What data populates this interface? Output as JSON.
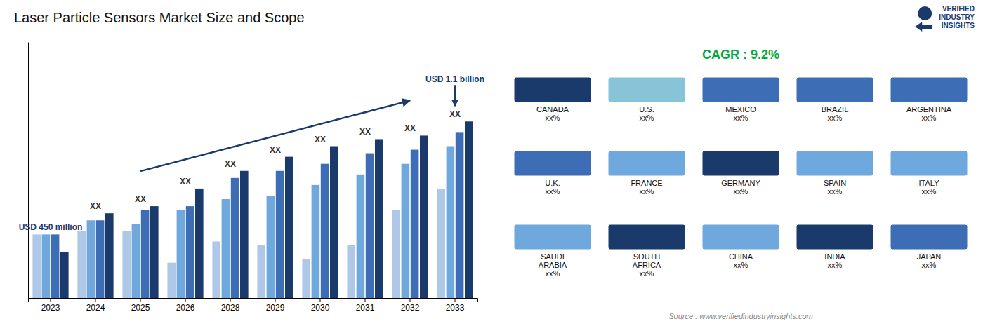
{
  "chart_data": [
    {
      "type": "bar",
      "title": "Laser Particle Sensors Market Size and Scope",
      "categories": [
        "2023",
        "2024",
        "2025",
        "2026",
        "2028",
        "2029",
        "2030",
        "2031",
        "2032",
        "2033"
      ],
      "series": [
        {
          "color": "#b0c8e8",
          "values": [
            0.36,
            0.38,
            0.38,
            0.2,
            0.32,
            0.3,
            0.22,
            0.3,
            0.5,
            0.62
          ]
        },
        {
          "color": "#6fa8dc",
          "values": [
            0.36,
            0.44,
            0.42,
            0.5,
            0.56,
            0.58,
            0.64,
            0.7,
            0.76,
            0.86
          ]
        },
        {
          "color": "#3d6db5",
          "values": [
            0.36,
            0.44,
            0.5,
            0.52,
            0.68,
            0.72,
            0.76,
            0.82,
            0.84,
            0.94
          ]
        },
        {
          "color": "#1a3a6b",
          "values": [
            0.26,
            0.48,
            0.52,
            0.62,
            0.72,
            0.8,
            0.86,
            0.9,
            0.92,
            1
          ]
        }
      ],
      "ylim": [
        0,
        1.45
      ],
      "tick_labels": "x",
      "grid": false,
      "annotations": [
        {
          "text": "USD 450 million",
          "x": "2023",
          "color": "#1a3a6b"
        },
        {
          "text": "XX",
          "x": "2024",
          "color": "#333333"
        },
        {
          "text": "XX",
          "x": "2025",
          "color": "#333333"
        },
        {
          "text": "XX",
          "x": "2026",
          "color": "#333333"
        },
        {
          "text": "XX",
          "x": "2028",
          "color": "#333333"
        },
        {
          "text": "XX",
          "x": "2029",
          "color": "#333333"
        },
        {
          "text": "XX",
          "x": "2030",
          "color": "#333333"
        },
        {
          "text": "XX",
          "x": "2031",
          "color": "#333333"
        },
        {
          "text": "XX",
          "x": "2032",
          "color": "#333333"
        },
        {
          "text": "XX",
          "x": "2033",
          "color": "#333333"
        },
        {
          "text": "USD 1.1 billion",
          "x": "2033",
          "color": "#1a3a6b"
        }
      ]
    },
    {
      "type": "map",
      "categories": [
        "CANADA\nxx%",
        "U.S.\nxx%",
        "MEXICO\nxx%",
        "BRAZIL\nxx%",
        "ARGENTINA\nxx%",
        "U.K.\nxx%",
        "FRANCE\nxx%",
        "GERMANY\nxx%",
        "SPAIN\nxx%",
        "ITALY\nxx%",
        "SAUDI\nARABIA\nxx%",
        "SOUTH\nAFRICA\nxx%",
        "CHINA\nxx%",
        "INDIA\nxx%",
        "JAPAN\nxx%"
      ],
      "colors": [
        "#1a3a6b",
        "#87c4d8",
        "#3d6db5",
        "#3d6db5",
        "#3d6db5",
        "#3d6db5",
        "#6fa8dc",
        "#1a3a6b",
        "#6fa8dc",
        "#6fa8dc",
        "#6fa8dc",
        "#1a3a6b",
        "#6fa8dc",
        "#1a3a6b",
        "#3d6db5"
      ],
      "annotations": [
        {
          "text": "CAGR : 9.2%",
          "color": "#00aa44"
        },
        {
          "text": "Source : www.verifiedindustryinsights.com",
          "color": "#888888"
        },
        {
          "text": "VERIFIED\nINDUSTRY\nINSIGHTS",
          "color": "#1a3a6b"
        }
      ]
    }
  ]
}
